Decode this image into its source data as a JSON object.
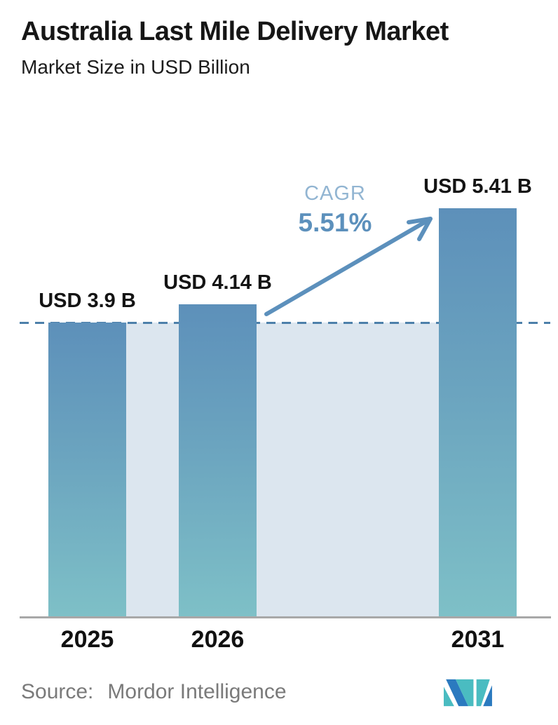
{
  "header": {
    "title": "Australia Last Mile Delivery Market",
    "subtitle": "Market Size in USD Billion"
  },
  "chart_data": {
    "type": "bar",
    "title": "Australia Last Mile Delivery Market",
    "subtitle": "Market Size in USD Billion",
    "categories": [
      "2025",
      "2026",
      "2031"
    ],
    "values": [
      3.9,
      4.14,
      5.41
    ],
    "value_labels": [
      "USD 3.9 B",
      "USD 4.14 B",
      "USD 5.41 B"
    ],
    "unit": "USD Billion",
    "cagr_label": "CAGR",
    "cagr_value": "5.51%",
    "baseline_value": 3.9,
    "xlabel": "",
    "ylabel": "",
    "ylim": [
      0,
      5.8
    ],
    "grid": false,
    "legend": false,
    "y_axis_visible": false,
    "annotations": [
      {
        "type": "dashed-reference-line",
        "at_value": 3.9
      },
      {
        "type": "growth-arrow",
        "from_category": "2026",
        "to_category": "2031"
      }
    ],
    "colors": {
      "bar_gradient_top": "#5d90ba",
      "bar_gradient_bottom": "#7ec0c7",
      "background_band": "#dce6ef",
      "dashed_line": "#4d80aa",
      "arrow": "#5c90bc",
      "cagr_label_text": "#92b5d2",
      "cagr_value_text": "#5c90bc",
      "baseline_axis": "#a8a8a8",
      "label_text": "#141414",
      "source_text": "#7a7a7a",
      "logo_blue": "#2b7abf",
      "logo_teal": "#4abcc1"
    }
  },
  "footer": {
    "source_label": "Source:",
    "source_value": "Mordor Intelligence",
    "logo_name": "mordor-intelligence-logo"
  }
}
